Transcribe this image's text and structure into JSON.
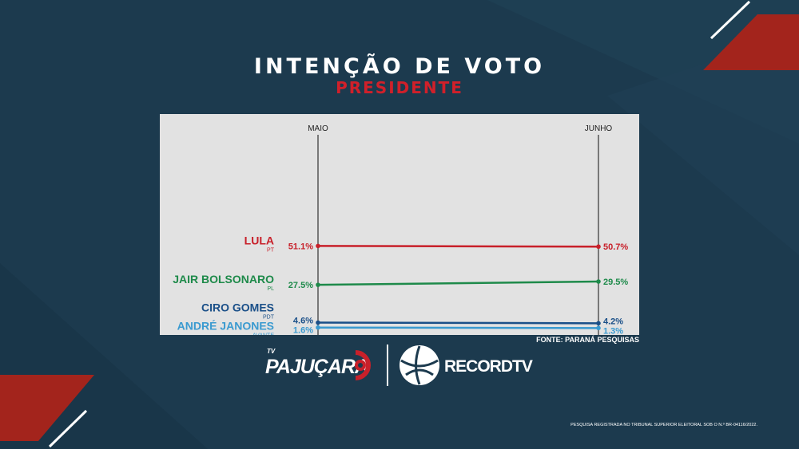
{
  "header": {
    "title": "INTENÇÃO DE VOTO",
    "subtitle": "PRESIDENTE"
  },
  "colors": {
    "background": "#1c3a4e",
    "accent_red": "#a3241c",
    "panel": "#e2e2e2"
  },
  "chart_data": {
    "type": "line",
    "title": "INTENÇÃO DE VOTO",
    "subtitle": "PRESIDENTE",
    "x": [
      "MAIO",
      "JUNHO"
    ],
    "series": [
      {
        "name": "LULA",
        "party": "PT",
        "color": "#c8202a",
        "values": [
          51.1,
          50.7
        ],
        "labels": [
          "51.1%",
          "50.7%"
        ]
      },
      {
        "name": "JAIR BOLSONARO",
        "party": "PL",
        "color": "#1e8a4a",
        "values": [
          27.5,
          29.5
        ],
        "labels": [
          "27.5%",
          "29.5%"
        ]
      },
      {
        "name": "CIRO GOMES",
        "party": "PDT",
        "color": "#1a4f88",
        "values": [
          4.6,
          4.2
        ],
        "labels": [
          "4.6%",
          "4.2%"
        ]
      },
      {
        "name": "ANDRÉ JANONES",
        "party": "AVANTE",
        "color": "#3a9ad0",
        "values": [
          1.6,
          1.3
        ],
        "labels": [
          "1.6%",
          "1.3%"
        ]
      }
    ],
    "ylim": [
      0,
      60
    ],
    "grid": false,
    "legend": "left, inline with lines",
    "source": "FONTE: PARANÁ PESQUISAS"
  },
  "logos": {
    "left_small": "TV",
    "left": "PAJUÇARA",
    "right": "RECORDTV"
  },
  "footnote": "PESQUISA REGISTRADA NO TRIBUNAL SUPERIOR ELEITORAL SOB O N.º BR-04116/2022."
}
